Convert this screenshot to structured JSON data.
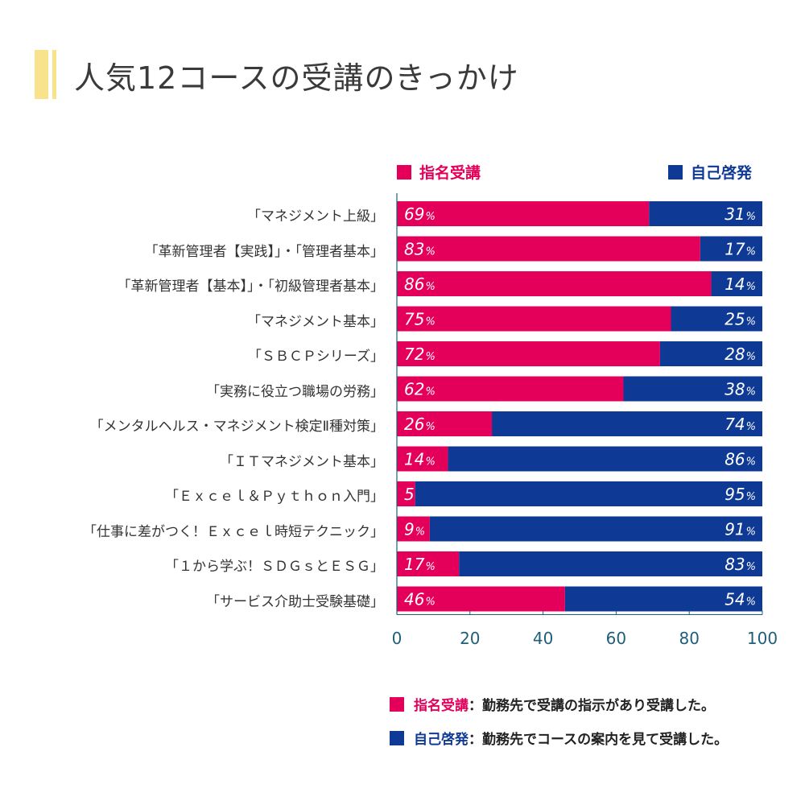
{
  "title": "人気12コースの受講のきっかけ",
  "colors": {
    "designated": "#e4005a",
    "self": "#0e3a95",
    "axis": "#1f5f7a",
    "title_accent": "#f8e38c"
  },
  "legend": [
    {
      "label": "指名受講",
      "color": "#e4005a"
    },
    {
      "label": "自己啓発",
      "color": "#0e3a95"
    }
  ],
  "notes": [
    {
      "term": "指名受講",
      "text": "：勤務先で受講の指示があり受講した。",
      "color": "#e4005a"
    },
    {
      "term": "自己啓発",
      "text": "：勤務先でコースの案内を見て受講した。",
      "color": "#0e3a95"
    }
  ],
  "chart_data": {
    "type": "bar",
    "orientation": "horizontal",
    "stacked": true,
    "title": "人気12コースの受講のきっかけ",
    "xlabel": "",
    "ylabel": "",
    "xlim": [
      0,
      100
    ],
    "xticks": [
      "0",
      "20",
      "40",
      "60",
      "80",
      "100"
    ],
    "value_suffix": "%",
    "categories": [
      "「マネジメント上級」",
      "「革新管理者【実践】」・「管理者基本」",
      "「革新管理者【基本】」・「初級管理者基本」",
      "「マネジメント基本」",
      "「ＳＢＣＰシリーズ」",
      "「実務に役立つ職場の労務」",
      "「メンタルヘルス・マネジメント検定Ⅱ種対策」",
      "「ＩＴマネジメント基本」",
      "「Ｅｘｃｅｌ＆Ｐｙｔｈｏｎ入門」",
      "「仕事に差がつく！Ｅｘｃｅｌ時短テクニック」",
      "「１から学ぶ！ＳＤＧｓとＥＳＧ」",
      "「サービス介助士受験基礎」"
    ],
    "series": [
      {
        "name": "指名受講",
        "values": [
          69,
          83,
          86,
          75,
          72,
          62,
          26,
          14,
          5,
          9,
          17,
          46
        ]
      },
      {
        "name": "自己啓発",
        "values": [
          31,
          17,
          14,
          25,
          28,
          38,
          74,
          86,
          95,
          91,
          83,
          54
        ]
      }
    ],
    "legend_position": "top"
  }
}
